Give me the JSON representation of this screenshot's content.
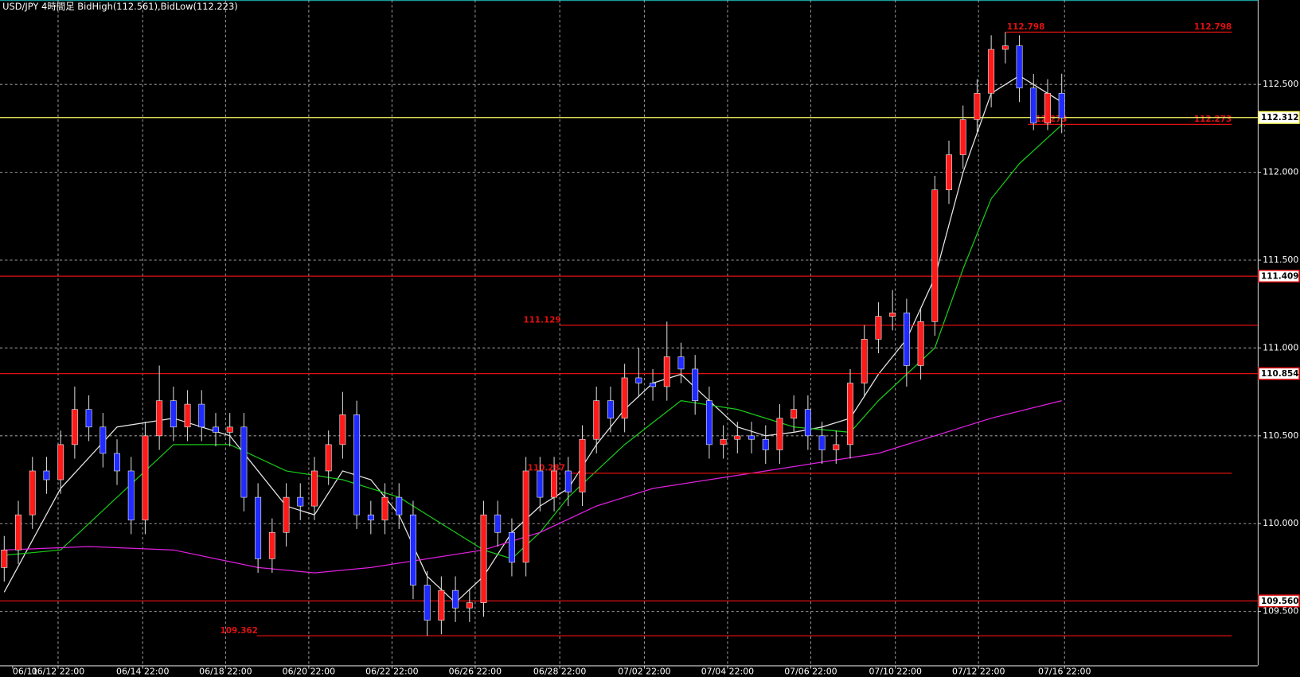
{
  "chart_data": {
    "type": "candlestick",
    "title": "USD/JPY 4時間足  BidHigh(112.561),BidLow(112.223)",
    "up_color": "#ff1a1a",
    "down_color": "#1f2bff",
    "grid": true,
    "xlim": [
      -0.3,
      88.9
    ],
    "ylim": [
      109.193,
      112.981
    ],
    "yticks": [
      {
        "value": 112.5,
        "label": "112.500"
      },
      {
        "value": 112.0,
        "label": "112.000"
      },
      {
        "value": 111.5,
        "label": "111.500"
      },
      {
        "value": 111.0,
        "label": "111.000"
      },
      {
        "value": 110.5,
        "label": "110.500"
      },
      {
        "value": 110.0,
        "label": "110.000"
      },
      {
        "value": 109.5,
        "label": "109.500"
      }
    ],
    "xticks": [
      {
        "value": 0.6,
        "label": "06/11"
      },
      {
        "value": 3.82,
        "label": "06/12 22:00"
      },
      {
        "value": 9.82,
        "label": "06/14 22:00"
      },
      {
        "value": 15.7,
        "label": "06/18 22:00"
      },
      {
        "value": 21.6,
        "label": "06/20 22:00"
      },
      {
        "value": 27.5,
        "label": "06/22 22:00"
      },
      {
        "value": 33.4,
        "label": "06/26 22:00"
      },
      {
        "value": 39.4,
        "label": "06/28 22:00"
      },
      {
        "value": 45.4,
        "label": "07/02 22:00"
      },
      {
        "value": 51.3,
        "label": "07/04 22:00"
      },
      {
        "value": 57.2,
        "label": "07/06 22:00"
      },
      {
        "value": 63.2,
        "label": "07/10 22:00"
      },
      {
        "value": 69.1,
        "label": "07/12 22:00"
      },
      {
        "value": 75.2,
        "label": "07/16 22:00"
      }
    ],
    "open": [
      109.75,
      109.85,
      110.05,
      110.3,
      110.25,
      110.45,
      110.65,
      110.55,
      110.4,
      110.3,
      110.02,
      110.5,
      110.7,
      110.55,
      110.68,
      110.55,
      110.52,
      110.55,
      110.15,
      109.8,
      109.95,
      110.15,
      110.1,
      110.3,
      110.45,
      110.62,
      110.05,
      110.02,
      110.15,
      110.05,
      109.65,
      109.45,
      109.62,
      109.52,
      109.55,
      110.05,
      109.95,
      109.78,
      110.3,
      110.15,
      110.3,
      110.18,
      110.48,
      110.7,
      110.6,
      110.83,
      110.8,
      110.78,
      110.95,
      110.88,
      110.7,
      110.45,
      110.48,
      110.5,
      110.48,
      110.42,
      110.6,
      110.65,
      110.5,
      110.42,
      110.45,
      110.8,
      111.05,
      111.18,
      111.2,
      110.9,
      111.15,
      111.9,
      112.1,
      112.3,
      112.45,
      112.7,
      112.72,
      112.48,
      112.28,
      112.45
    ],
    "high": [
      109.93,
      110.13,
      110.38,
      110.38,
      110.53,
      110.78,
      110.73,
      110.63,
      110.48,
      110.38,
      110.58,
      110.9,
      110.78,
      110.76,
      110.76,
      110.63,
      110.63,
      110.63,
      110.23,
      110.03,
      110.23,
      110.23,
      110.38,
      110.53,
      110.75,
      110.7,
      110.13,
      110.23,
      110.23,
      110.13,
      109.73,
      109.7,
      109.7,
      109.63,
      110.13,
      110.13,
      110.03,
      110.38,
      110.38,
      110.38,
      110.38,
      110.56,
      110.78,
      110.78,
      110.91,
      111.0,
      110.88,
      111.15,
      111.03,
      110.96,
      110.78,
      110.56,
      110.58,
      110.58,
      110.56,
      110.68,
      110.73,
      110.73,
      110.58,
      110.53,
      110.88,
      111.13,
      111.26,
      111.33,
      111.28,
      111.23,
      111.98,
      112.18,
      112.38,
      112.53,
      112.78,
      112.798,
      112.78,
      112.56,
      112.53,
      112.561
    ],
    "low": [
      109.67,
      109.77,
      109.97,
      110.17,
      110.17,
      110.37,
      110.47,
      110.32,
      110.22,
      109.94,
      109.94,
      110.42,
      110.47,
      110.47,
      110.47,
      110.44,
      110.44,
      110.07,
      109.72,
      109.72,
      109.87,
      110.02,
      110.02,
      110.22,
      110.37,
      109.97,
      109.94,
      109.94,
      109.97,
      109.57,
      109.362,
      109.37,
      109.44,
      109.44,
      109.47,
      109.87,
      109.7,
      109.7,
      110.07,
      110.07,
      110.1,
      110.1,
      110.4,
      110.52,
      110.52,
      110.72,
      110.7,
      110.7,
      110.8,
      110.62,
      110.37,
      110.37,
      110.4,
      110.4,
      110.34,
      110.34,
      110.52,
      110.42,
      110.34,
      110.34,
      110.37,
      110.72,
      110.97,
      111.1,
      110.78,
      110.82,
      111.07,
      111.82,
      112.02,
      112.22,
      112.37,
      112.62,
      112.4,
      112.24,
      112.24,
      112.223
    ],
    "close": [
      109.85,
      110.05,
      110.3,
      110.25,
      110.45,
      110.65,
      110.55,
      110.4,
      110.3,
      110.02,
      110.5,
      110.7,
      110.55,
      110.68,
      110.55,
      110.52,
      110.55,
      110.15,
      109.8,
      109.95,
      110.15,
      110.1,
      110.3,
      110.45,
      110.62,
      110.05,
      110.02,
      110.15,
      110.05,
      109.65,
      109.45,
      109.62,
      109.52,
      109.55,
      110.05,
      109.95,
      109.78,
      110.3,
      110.15,
      110.3,
      110.18,
      110.48,
      110.7,
      110.6,
      110.83,
      110.8,
      110.78,
      110.95,
      110.88,
      110.7,
      110.45,
      110.48,
      110.5,
      110.48,
      110.42,
      110.6,
      110.65,
      110.5,
      110.42,
      110.45,
      110.8,
      111.05,
      111.18,
      111.2,
      110.9,
      111.15,
      111.9,
      112.1,
      112.3,
      112.45,
      112.7,
      112.72,
      112.48,
      112.28,
      112.45,
      112.31
    ],
    "series": [
      {
        "color": "#e8e8e8",
        "x": [
          0,
          4,
          8,
          12,
          16,
          18,
          20,
          22,
          24,
          26,
          28,
          30,
          32,
          34,
          36,
          38,
          40,
          42,
          44,
          46,
          48,
          50,
          52,
          54,
          56,
          58,
          60,
          62,
          64,
          66,
          68,
          70,
          72,
          74,
          75
        ],
        "values": [
          109.61,
          110.2,
          110.55,
          110.6,
          110.5,
          110.3,
          110.1,
          110.05,
          110.3,
          110.25,
          110.05,
          109.7,
          109.55,
          109.7,
          109.95,
          110.1,
          110.2,
          110.45,
          110.65,
          110.8,
          110.85,
          110.7,
          110.55,
          110.5,
          110.52,
          110.55,
          110.6,
          110.85,
          111.05,
          111.4,
          112.0,
          112.45,
          112.55,
          112.45,
          112.4
        ]
      },
      {
        "color": "#19c819",
        "x": [
          0,
          4,
          8,
          12,
          16,
          20,
          24,
          28,
          32,
          34,
          36,
          38,
          40,
          44,
          48,
          52,
          56,
          60,
          62,
          64,
          66,
          68,
          70,
          72,
          75
        ],
        "values": [
          109.82,
          109.85,
          110.15,
          110.45,
          110.45,
          110.3,
          110.25,
          110.15,
          109.95,
          109.85,
          109.8,
          109.95,
          110.15,
          110.45,
          110.7,
          110.65,
          110.55,
          110.52,
          110.7,
          110.85,
          111.0,
          111.45,
          111.85,
          112.05,
          112.27
        ]
      },
      {
        "color": "#e020e0",
        "x": [
          0,
          6,
          12,
          18,
          22,
          26,
          30,
          34,
          38,
          42,
          46,
          50,
          54,
          58,
          62,
          66,
          70,
          75
        ],
        "values": [
          109.85,
          109.87,
          109.85,
          109.75,
          109.72,
          109.75,
          109.8,
          109.85,
          109.95,
          110.1,
          110.2,
          110.25,
          110.3,
          110.35,
          110.4,
          110.5,
          110.6,
          110.7
        ]
      }
    ],
    "levels": [
      {
        "value": 112.798,
        "label": "112.798",
        "color": "#dd1111",
        "start": 71,
        "end": 87.06,
        "label_at": "both"
      },
      {
        "value": 112.273,
        "label": "112.273",
        "color": "#dd1111",
        "start": 72.6,
        "end": 87.06,
        "label_at": "both"
      },
      {
        "value": 111.409,
        "label": "111.409",
        "color": "#dd1111",
        "label_at": "axis"
      },
      {
        "value": 111.129,
        "label": "111.129",
        "color": "#dd1111",
        "start": 39.4,
        "end": 88.9,
        "label_at": "start"
      },
      {
        "value": 110.854,
        "label": "110.854",
        "color": "#dd1111",
        "label_at": "axis"
      },
      {
        "value": 110.287,
        "label": "110.287",
        "color": "#dd1111",
        "start": 39.7,
        "end": 87.06,
        "label_at": "start"
      },
      {
        "value": 109.56,
        "label": "109.560",
        "color": "#dd1111",
        "label_at": "axis"
      },
      {
        "value": 109.362,
        "label": "109.362",
        "color": "#dd1111",
        "start": 17.9,
        "end": 87.06,
        "label_at": "start"
      },
      {
        "value": 112.312,
        "label": "112.312",
        "color": "#ffff66",
        "label_at": "axis"
      }
    ]
  }
}
